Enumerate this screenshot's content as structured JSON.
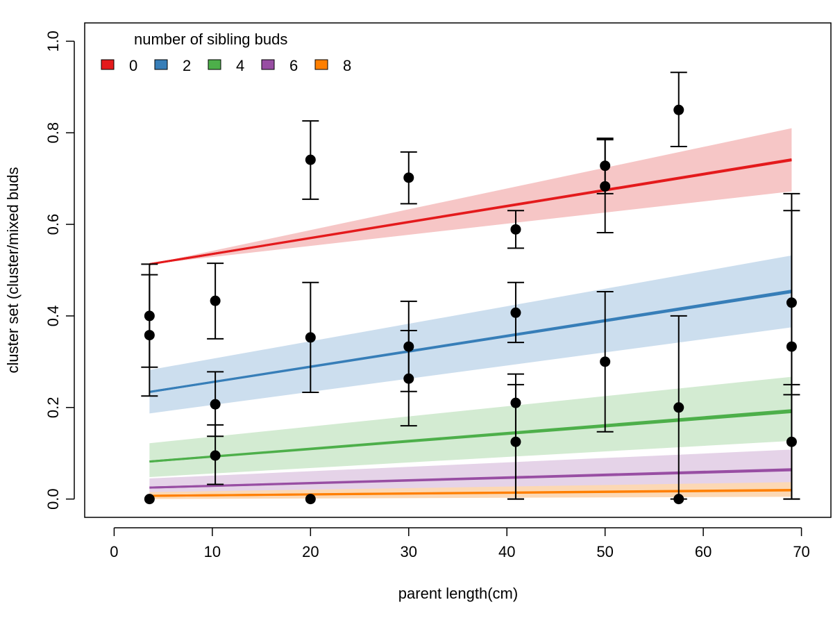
{
  "chart_data": {
    "type": "scatter",
    "xlabel": "parent length(cm)",
    "ylabel": "cluster set (cluster/mixed buds",
    "xlim": [
      -3,
      73
    ],
    "ylim": [
      -0.04,
      1.04
    ],
    "x_ticks": [
      0,
      10,
      20,
      30,
      40,
      50,
      60,
      70
    ],
    "y_ticks": [
      0.0,
      0.2,
      0.4,
      0.6,
      0.8,
      1.0
    ],
    "x_tick_labels": [
      "0",
      "10",
      "20",
      "30",
      "40",
      "50",
      "60",
      "70"
    ],
    "y_tick_labels": [
      "0.0",
      "0.2",
      "0.4",
      "0.6",
      "0.8",
      "1.0"
    ],
    "grid": false,
    "legend": {
      "title": "number of sibling buds",
      "placement": "top-left",
      "entries": [
        {
          "label": "0",
          "color": "#e41a1c"
        },
        {
          "label": "2",
          "color": "#377eb8"
        },
        {
          "label": "4",
          "color": "#4daf4a"
        },
        {
          "label": "6",
          "color": "#984ea3"
        },
        {
          "label": "8",
          "color": "#ff7f00"
        }
      ]
    },
    "fit_lines": [
      {
        "label": "0",
        "color": "#e41a1c",
        "band_color": "#f6c6c6",
        "x": [
          3.6,
          69
        ],
        "y": [
          0.513,
          0.742
        ],
        "y_alt": [
          0.513,
          0.74
        ],
        "band_lower": [
          0.513,
          0.672
        ],
        "band_upper": [
          0.513,
          0.81
        ]
      },
      {
        "label": "2",
        "color": "#377eb8",
        "band_color": "#ccdeee",
        "x": [
          3.6,
          69
        ],
        "y": [
          0.234,
          0.455
        ],
        "y_alt": [
          0.234,
          0.452
        ],
        "band_lower": [
          0.187,
          0.375
        ],
        "band_upper": [
          0.282,
          0.532
        ]
      },
      {
        "label": "4",
        "color": "#4daf4a",
        "band_color": "#d3ebd2",
        "x": [
          3.6,
          69
        ],
        "y": [
          0.082,
          0.194
        ],
        "y_alt": [
          0.082,
          0.19
        ],
        "band_lower": [
          0.048,
          0.127
        ],
        "band_upper": [
          0.122,
          0.267
        ]
      },
      {
        "label": "6",
        "color": "#984ea3",
        "band_color": "#e5d3e8",
        "x": [
          3.6,
          69
        ],
        "y": [
          0.025,
          0.065
        ],
        "y_alt": [
          0.025,
          0.063
        ],
        "band_lower": [
          0.01,
          0.035
        ],
        "band_upper": [
          0.045,
          0.108
        ]
      },
      {
        "label": "8",
        "color": "#ff7f00",
        "band_color": "#fcd8b4",
        "x": [
          3.6,
          69
        ],
        "y": [
          0.007,
          0.02
        ],
        "y_alt": [
          0.007,
          0.019
        ],
        "band_lower": [
          0.0,
          0.005
        ],
        "band_upper": [
          0.015,
          0.037
        ]
      }
    ],
    "points": [
      {
        "x": 3.6,
        "y": 0.4,
        "err_low": 0.288,
        "err_high": 0.49
      },
      {
        "x": 3.6,
        "y": 0.358,
        "err_low": 0.225,
        "err_high": 0.513
      },
      {
        "x": 3.6,
        "y": 0.0
      },
      {
        "x": 10.3,
        "y": 0.433,
        "err_low": 0.35,
        "err_high": 0.515
      },
      {
        "x": 10.3,
        "y": 0.207,
        "err_low": 0.137,
        "err_high": 0.278
      },
      {
        "x": 10.3,
        "y": 0.095,
        "err_low": 0.032,
        "err_high": 0.162
      },
      {
        "x": 20.0,
        "y": 0.741,
        "err_low": 0.655,
        "err_high": 0.826
      },
      {
        "x": 20.0,
        "y": 0.353,
        "err_low": 0.233,
        "err_high": 0.473
      },
      {
        "x": 20.0,
        "y": 0.0
      },
      {
        "x": 30.0,
        "y": 0.702,
        "err_low": 0.645,
        "err_high": 0.758
      },
      {
        "x": 30.0,
        "y": 0.333,
        "err_low": 0.235,
        "err_high": 0.432
      },
      {
        "x": 30.0,
        "y": 0.263,
        "err_low": 0.16,
        "err_high": 0.368
      },
      {
        "x": 40.9,
        "y": 0.589,
        "err_low": 0.548,
        "err_high": 0.63
      },
      {
        "x": 40.9,
        "y": 0.407,
        "err_low": 0.342,
        "err_high": 0.473
      },
      {
        "x": 40.9,
        "y": 0.21,
        "err_low": 0.0,
        "err_high": 0.25
      },
      {
        "x": 40.9,
        "y": 0.125,
        "err_low": 0.0,
        "err_high": 0.273
      },
      {
        "x": 50.0,
        "y": 0.728,
        "err_low": 0.667,
        "err_high": 0.788
      },
      {
        "x": 50.0,
        "y": 0.683,
        "err_low": 0.582,
        "err_high": 0.785
      },
      {
        "x": 50.0,
        "y": 0.3,
        "err_low": 0.147,
        "err_high": 0.453
      },
      {
        "x": 57.5,
        "y": 0.85,
        "err_low": 0.77,
        "err_high": 0.932
      },
      {
        "x": 57.5,
        "y": 0.2,
        "err_low": 0.0,
        "err_high": 0.4
      },
      {
        "x": 57.5,
        "y": 0.0
      },
      {
        "x": 69.0,
        "y": 0.429,
        "err_low": 0.228,
        "err_high": 0.63
      },
      {
        "x": 69.0,
        "y": 0.333,
        "err_low": 0.0,
        "err_high": 0.667
      },
      {
        "x": 69.0,
        "y": 0.125,
        "err_low": 0.0,
        "err_high": 0.25
      }
    ]
  }
}
